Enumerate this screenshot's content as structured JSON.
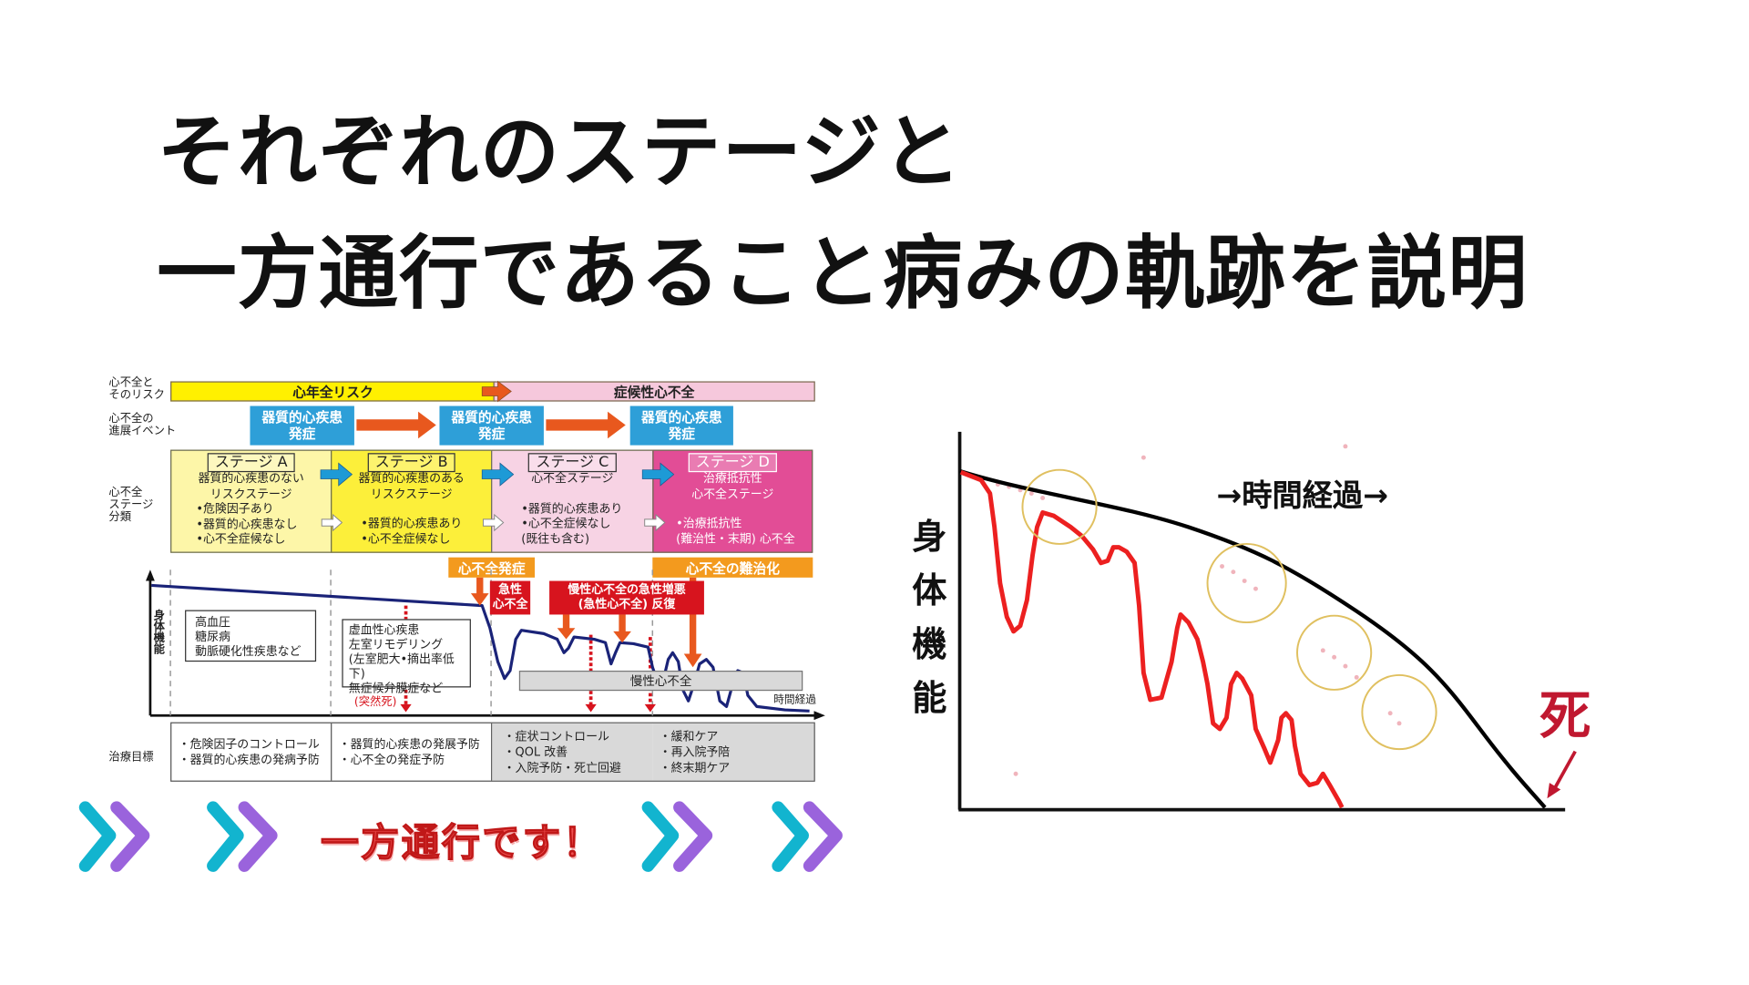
{
  "title": {
    "line1": "それぞれのステージと",
    "line2": "一方通行であること病みの軌跡を説明"
  },
  "left_diagram": {
    "row_labels": {
      "risk": [
        "心不全と",
        "そのリスク"
      ],
      "events": [
        "心不全の",
        "進展イベント"
      ],
      "stages": [
        "心不全",
        "ステージ",
        "分類"
      ],
      "treatment": "治療目標"
    },
    "risk_bar": {
      "left": "心年全リスク",
      "right": "症候性心不全"
    },
    "events": [
      {
        "line1": "器質的心疾患",
        "line2": "発症"
      },
      {
        "line1": "器質的心疾患",
        "line2": "発症"
      },
      {
        "line1": "器質的心疾患",
        "line2": "発症"
      }
    ],
    "stages": [
      {
        "name": "ステージ A",
        "desc": [
          "器質的心疾患のない",
          "リスクステージ"
        ],
        "items": [
          "•危険因子あり",
          "•器質的心疾患なし",
          "•心不全症候なし"
        ],
        "color": "#fdf6a8"
      },
      {
        "name": "ステージ B",
        "desc": [
          "器質的心疾患のある",
          "リスクステージ"
        ],
        "items": [
          "•器質的心疾患あり",
          "•心不全症候なし"
        ],
        "color": "#fcef3a"
      },
      {
        "name": "ステージ C",
        "desc": [
          "心不全ステージ"
        ],
        "items": [
          "•器質的心疾患あり",
          "•心不全症候なし",
          "(既往も含む)"
        ],
        "color": "#f7d3e4"
      },
      {
        "name": "ステージ D",
        "desc": [
          "治療抵抗性",
          "心不全ステージ"
        ],
        "items": [
          "•治療抵抗性",
          "(難治性・末期) 心不全"
        ],
        "color": "#e24d96"
      }
    ],
    "milestones": {
      "onset": "心不全発症",
      "refractory": "心不全の難治化"
    },
    "graph": {
      "y_label": "身体機能",
      "x_label": "時間経過",
      "acute": [
        "急性",
        "心不全"
      ],
      "repeat": [
        "慢性心不全の急性増悪",
        "(急性心不全) 反復"
      ],
      "box_a": [
        "高血圧",
        "糖尿病",
        "動脈硬化性疾患など"
      ],
      "box_b": [
        "虚血性心疾患",
        "左室リモデリング",
        "(左室肥大•摘出率低下)",
        "無症候弁膜症など"
      ],
      "sudden_death": "(突然死)",
      "chronic": "慢性心不全"
    },
    "treatment": [
      [
        "・危険因子のコントロール",
        "・器質的心疾患の発病予防"
      ],
      [
        "・器質的心疾患の発展予防",
        "・心不全の発症予防"
      ],
      [
        "・症状コントロール",
        "・QOL 改善",
        "・入院予防・死亡回避"
      ],
      [
        "・緩和ケア",
        "・再入院予陪",
        "・終末期ケア"
      ]
    ]
  },
  "banner": {
    "text": "一方通行です！",
    "chevron_colors": [
      "#12b4cf",
      "#9a63dc"
    ]
  },
  "right_chart": {
    "y_label": [
      "身",
      "体",
      "機",
      "能"
    ],
    "x_label": "→時間経過→",
    "end_label": "死",
    "colors": {
      "ideal": "#000000",
      "actual": "#ec2020",
      "highlight": "#e0c060"
    }
  }
}
